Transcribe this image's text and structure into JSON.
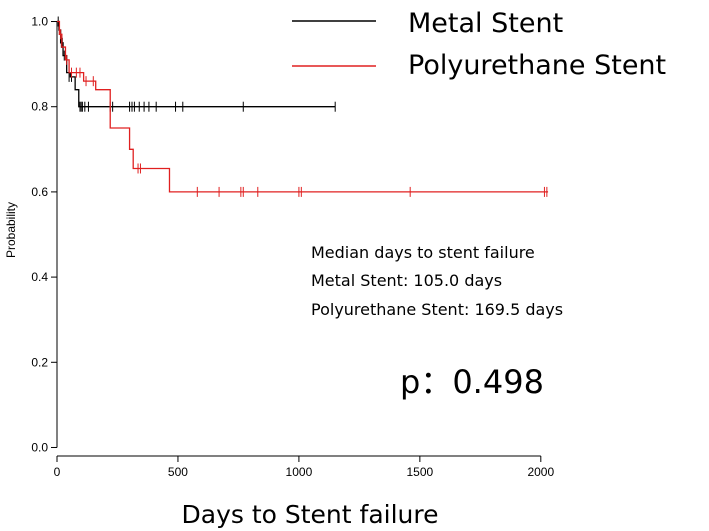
{
  "chart_data": {
    "type": "line",
    "subtype": "kaplan-meier",
    "xlabel": "Days to Stent failure",
    "ylabel": "Probability",
    "xlim": [
      0,
      2100
    ],
    "ylim": [
      -0.02,
      1.02
    ],
    "xticks": [
      0,
      500,
      1000,
      1500,
      2000
    ],
    "xtick_labels": [
      "0",
      "500",
      "1000",
      "1500",
      "2000"
    ],
    "yticks": [
      0.0,
      0.2,
      0.4,
      0.6,
      0.8,
      1.0
    ],
    "ytick_labels": [
      "0.0",
      "0.2",
      "0.4",
      "0.6",
      "0.8",
      "1.0"
    ],
    "grid": false,
    "legend_position": "top-right",
    "series": [
      {
        "name": "Metal Stent",
        "color": "#000000",
        "steps": [
          [
            0,
            1.0
          ],
          [
            8,
            0.98
          ],
          [
            15,
            0.95
          ],
          [
            25,
            0.92
          ],
          [
            40,
            0.88
          ],
          [
            55,
            0.87
          ],
          [
            75,
            0.84
          ],
          [
            90,
            0.8
          ],
          [
            1150,
            0.8
          ]
        ],
        "censor": [
          [
            5,
            1.0
          ],
          [
            10,
            0.98
          ],
          [
            18,
            0.95
          ],
          [
            22,
            0.95
          ],
          [
            30,
            0.92
          ],
          [
            50,
            0.87
          ],
          [
            60,
            0.87
          ],
          [
            95,
            0.8
          ],
          [
            100,
            0.8
          ],
          [
            105,
            0.8
          ],
          [
            115,
            0.8
          ],
          [
            130,
            0.8
          ],
          [
            220,
            0.8
          ],
          [
            230,
            0.8
          ],
          [
            300,
            0.8
          ],
          [
            310,
            0.8
          ],
          [
            320,
            0.8
          ],
          [
            340,
            0.8
          ],
          [
            360,
            0.8
          ],
          [
            380,
            0.8
          ],
          [
            410,
            0.8
          ],
          [
            490,
            0.8
          ],
          [
            520,
            0.8
          ],
          [
            770,
            0.8
          ],
          [
            1150,
            0.8
          ]
        ]
      },
      {
        "name": "Polyurethane Stent",
        "color": "#e02020",
        "steps": [
          [
            0,
            1.0
          ],
          [
            10,
            0.97
          ],
          [
            20,
            0.94
          ],
          [
            35,
            0.91
          ],
          [
            50,
            0.88
          ],
          [
            110,
            0.86
          ],
          [
            160,
            0.84
          ],
          [
            220,
            0.75
          ],
          [
            300,
            0.7
          ],
          [
            315,
            0.655
          ],
          [
            465,
            0.6
          ],
          [
            2030,
            0.6
          ]
        ],
        "censor": [
          [
            15,
            0.97
          ],
          [
            40,
            0.91
          ],
          [
            60,
            0.88
          ],
          [
            80,
            0.88
          ],
          [
            95,
            0.88
          ],
          [
            120,
            0.86
          ],
          [
            150,
            0.86
          ],
          [
            335,
            0.655
          ],
          [
            345,
            0.655
          ],
          [
            580,
            0.6
          ],
          [
            670,
            0.6
          ],
          [
            760,
            0.6
          ],
          [
            770,
            0.6
          ],
          [
            830,
            0.6
          ],
          [
            1000,
            0.6
          ],
          [
            1010,
            0.6
          ],
          [
            1460,
            0.6
          ],
          [
            2015,
            0.6
          ],
          [
            2025,
            0.6
          ]
        ]
      }
    ],
    "annotation_lines": [
      "Median days to stent failure",
      "Metal Stent: 105.0 days",
      "Polyurethane Stent: 169.5 days"
    ],
    "p_value": "p：0.498"
  }
}
